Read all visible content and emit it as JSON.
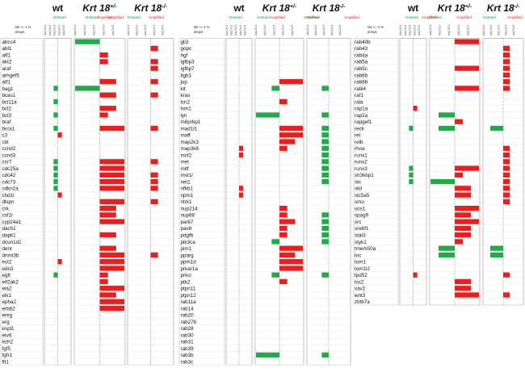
{
  "chart_data": {
    "type": "heatmap",
    "title": "",
    "group_labels": {
      "wt": "wt",
      "het_base": "Krt 18",
      "het_sup": "+/-",
      "ko_base": "Krt 18",
      "ko_sup": "-/-"
    },
    "legend": {
      "deleted": "Deleted",
      "amplified": "Amplified"
    },
    "threshold_note": [
      "Ids >= 4 %",
      "arrays"
    ],
    "column_headers": [
      "Adj.Ctrl.1",
      "Adj.Ctrl.2",
      "Adj.Ctrl.3",
      "Adj.Ctrl.4",
      "Adj.Ctrl.5"
    ],
    "colors": {
      "deleted": "#22a94a",
      "amplified": "#ee1c1c"
    },
    "panels": [
      {
        "genes": [
          "abcc4",
          "abl1",
          "aff1",
          "akt2",
          "araf",
          "arhgef5",
          "atf1",
          "bag1",
          "bcas1",
          "bcl11a",
          "bcl2",
          "bcl3",
          "braf",
          "brca1",
          "c3",
          "cbl",
          "ccnd2",
          "ccnd3",
          "ccr7",
          "cdc25a",
          "cdc42",
          "cdc73",
          "cdkn2a",
          "chd1l",
          "dlspn",
          "crk",
          "csf1r",
          "cyp24a1",
          "dach1",
          "dapk1",
          "dcun1d1",
          "denr",
          "dnmt3b",
          "ect2",
          "edn3",
          "egfr",
          "eif2ak2",
          "ela2",
          "elk1",
          "epha2",
          "erbb2",
          "ereg",
          "erg",
          "espl1",
          "etv6",
          "ezh2",
          "fgf5",
          "fgfr1",
          "flt1"
        ],
        "wt": [
          0,
          0,
          0,
          0,
          0,
          0,
          0,
          -1,
          0,
          -1,
          0,
          -1,
          0,
          -1,
          1,
          0,
          0,
          0,
          -1,
          -1,
          -1,
          -1,
          -1,
          1,
          0,
          0,
          0,
          0,
          0,
          0,
          0,
          0,
          0,
          1,
          0,
          -1,
          0,
          0,
          0,
          0,
          0,
          0,
          0,
          0,
          0,
          0,
          0,
          0,
          0
        ],
        "het": [
          -3,
          0,
          1,
          1,
          0,
          0,
          2,
          -3,
          2,
          0,
          2,
          1,
          0,
          3,
          0,
          0,
          0,
          0,
          3,
          3,
          3,
          3,
          3,
          0,
          3,
          2,
          2,
          3,
          0,
          2,
          0,
          2,
          3,
          3,
          3,
          1,
          1,
          3,
          2,
          3,
          3,
          0,
          0,
          0,
          0,
          0,
          0,
          0,
          0
        ],
        "ko": [
          0,
          1,
          0,
          1,
          1,
          0,
          1,
          0,
          1,
          0,
          0,
          0,
          0,
          1,
          0,
          0,
          0,
          0,
          1,
          0,
          1,
          1,
          1,
          0,
          1,
          0,
          0,
          0,
          0,
          0,
          0,
          0,
          1,
          0,
          0,
          0,
          0,
          0,
          0,
          0,
          0,
          0,
          0,
          0,
          0,
          0,
          0,
          0,
          0
        ]
      },
      {
        "genes": [
          "gli3",
          "gopc",
          "hgf",
          "igfbp3",
          "igfbp7",
          "itgb1",
          "jup",
          "kit",
          "kras",
          "lcn2",
          "lsm1",
          "lyn",
          "m6prbp1",
          "mad1l1",
          "maff",
          "map2k3",
          "map3k8",
          "mcf2",
          "met",
          "mitf",
          "mst1r",
          "net1",
          "nfkb1",
          "npm1",
          "ntrk1",
          "nup214",
          "nup88",
          "park7",
          "pax8",
          "pdgfb",
          "pik3ca",
          "pim1",
          "pparg",
          "ppm1d",
          "prkar1a",
          "prkci",
          "ptk2",
          "ptpn11",
          "ptpn12",
          "rab11a",
          "rab14",
          "rab20",
          "rab27b",
          "rab28",
          "rab30",
          "rab31",
          "rab39",
          "rab3b",
          "rab3c"
        ],
        "wt": [
          0,
          0,
          0,
          0,
          0,
          0,
          0,
          0,
          0,
          0,
          0,
          0,
          0,
          0,
          0,
          0,
          1,
          1,
          0,
          0,
          0,
          0,
          1,
          1,
          0,
          0,
          0,
          0,
          0,
          0,
          0,
          0,
          0,
          0,
          0,
          0,
          0,
          0,
          0,
          0,
          0,
          0,
          0,
          0,
          0,
          0,
          0,
          0,
          0
        ],
        "het": [
          0,
          0,
          0,
          0,
          0,
          0,
          3,
          -1,
          0,
          1,
          0,
          -3,
          0,
          3,
          3,
          2,
          1,
          0,
          0,
          0,
          0,
          0,
          0,
          0,
          0,
          1,
          1,
          2,
          1,
          1,
          -1,
          3,
          2,
          3,
          3,
          -1,
          1,
          0,
          0,
          0,
          0,
          0,
          0,
          0,
          0,
          0,
          0,
          -3,
          0
        ],
        "ko": [
          0,
          0,
          0,
          0,
          0,
          0,
          0,
          -1,
          0,
          0,
          0,
          -1,
          0,
          -1,
          -1,
          -1,
          -1,
          -1,
          -1,
          -1,
          -1,
          -1,
          0,
          0,
          0,
          0,
          -1,
          -1,
          -1,
          -1,
          -1,
          0,
          0,
          0,
          0,
          -1,
          0,
          0,
          0,
          0,
          0,
          0,
          0,
          0,
          0,
          0,
          0,
          -1,
          0
        ]
      },
      {
        "genes": [
          "rab40b",
          "rab43",
          "rab4a",
          "rab5a",
          "rab5c",
          "rab6b",
          "rab8b",
          "rabl4",
          "raf1",
          "rala",
          "rap1a",
          "rap2a",
          "rapgef1",
          "reck",
          "rel",
          "relb",
          "rhoa",
          "runx1",
          "runx2",
          "runx3",
          "sh3kbp1",
          "ski",
          "skil",
          "slc5a5",
          "smo",
          "sos1",
          "spag9",
          "src",
          "srebf1",
          "stat3",
          "styk1",
          "tmem50a",
          "tnc",
          "tom1",
          "tom1l2",
          "tpd52",
          "tsc2",
          "vav2",
          "wnt3",
          "zbtb7a"
        ],
        "wt": [
          0,
          0,
          0,
          0,
          0,
          0,
          0,
          0,
          0,
          0,
          1,
          0,
          0,
          -1,
          0,
          0,
          0,
          0,
          0,
          -1,
          -1,
          -1,
          0,
          0,
          0,
          0,
          0,
          0,
          0,
          0,
          0,
          0,
          0,
          0,
          0,
          1,
          0,
          0,
          0,
          0
        ],
        "het": [
          3,
          0,
          0,
          0,
          3,
          0,
          0,
          3,
          0,
          0,
          0,
          -2,
          1,
          -2,
          0,
          0,
          0,
          0,
          0,
          3,
          1,
          -3,
          2,
          2,
          0,
          3,
          2,
          3,
          2,
          2,
          1,
          -2,
          -2,
          0,
          0,
          0,
          2,
          2,
          3,
          0
        ],
        "ko": [
          0,
          1,
          1,
          1,
          1,
          1,
          1,
          1,
          0,
          0,
          0,
          0,
          0,
          -2,
          0,
          0,
          1,
          1,
          1,
          1,
          1,
          1,
          1,
          1,
          1,
          0,
          0,
          0,
          0,
          0,
          0,
          -2,
          -2,
          0,
          0,
          1,
          0,
          0,
          1,
          0
        ]
      }
    ]
  }
}
